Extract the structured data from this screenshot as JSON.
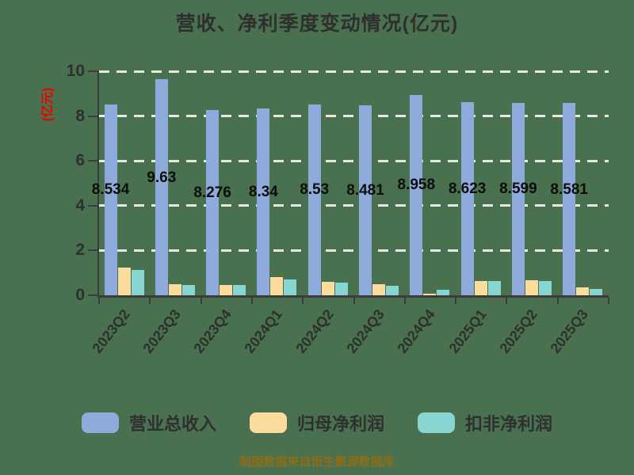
{
  "page": {
    "background_color": "#497150"
  },
  "chart_data": {
    "type": "bar",
    "title": "营收、净利季度变动情况(亿元)",
    "ylabel": "(亿元)",
    "xlabel": "",
    "ylim": [
      0,
      10
    ],
    "yticks": [
      0,
      2,
      4,
      6,
      8,
      10
    ],
    "grid": "horizontal dashed white lines",
    "legend_position": "bottom",
    "categories": [
      "2023Q2",
      "2023Q3",
      "2023Q4",
      "2024Q1",
      "2024Q2",
      "2024Q3",
      "2024Q4",
      "2025Q1",
      "2025Q2",
      "2025Q3"
    ],
    "series": [
      {
        "name": "营业总收入",
        "color": "#8fabdb",
        "values": [
          8.534,
          9.63,
          8.276,
          8.34,
          8.53,
          8.481,
          8.958,
          8.623,
          8.599,
          8.581
        ],
        "data_labels": [
          "8.534",
          "9.63",
          "8.276",
          "8.34",
          "8.53",
          "8.481",
          "8.958",
          "8.623",
          "8.599",
          "8.581"
        ]
      },
      {
        "name": "归母净利润",
        "color": "#fcdc9c",
        "values": [
          1.23,
          0.49,
          0.47,
          0.8,
          0.6,
          0.48,
          0.07,
          0.62,
          0.68,
          0.36
        ]
      },
      {
        "name": "扣非净利润",
        "color": "#87d6d1",
        "values": [
          1.14,
          0.45,
          0.45,
          0.7,
          0.55,
          0.42,
          0.25,
          0.62,
          0.62,
          0.3
        ]
      }
    ],
    "colors": {
      "axis": "#3c3c3c",
      "tick_label": "#2f2f2f",
      "title": "#2f2f2f",
      "ylabel": "#ee0000",
      "gridline": "#e8e8e8",
      "bar_value_label": "#0d0d0d"
    }
  },
  "footer": {
    "text": "制图数据来自恒生聚源数据库",
    "color": "#8e6d16"
  }
}
